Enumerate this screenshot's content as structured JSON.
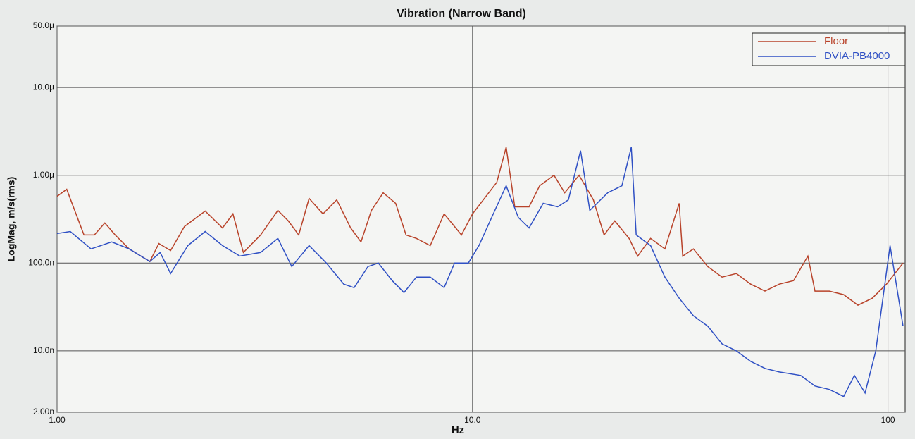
{
  "chart_data": {
    "type": "line",
    "title": "Vibration (Narrow Band)",
    "x_label": "Hz",
    "y_label": "LogMag, m/s(rms)",
    "x_log": true,
    "y_log": true,
    "grid": true,
    "legend": "upper right",
    "xlim": [
      1,
      110
    ],
    "xticks": [
      {
        "value": 1,
        "label": "1.00"
      },
      {
        "value": 10,
        "label": "10.0"
      },
      100
    ],
    "ylim": [
      2e-09,
      5e-05
    ],
    "yticks": [
      {
        "value": 5e-05,
        "label": "50.0µ"
      },
      {
        "value": 1e-05,
        "label": "10.0µ"
      },
      {
        "value": 1e-06,
        "label": "1.00µ"
      },
      {
        "value": 1e-07,
        "label": "100.0n"
      },
      {
        "value": 1e-08,
        "label": "10.0n"
      },
      {
        "value": 2e-09,
        "label": "2.00n"
      }
    ],
    "series": [
      {
        "name": "Floor",
        "color": "#b8432a",
        "x": [
          1.0,
          1.055,
          1.161,
          1.23,
          1.303,
          1.38,
          1.491,
          1.672,
          1.758,
          1.876,
          2.026,
          2.273,
          2.502,
          2.651,
          2.808,
          3.09,
          3.401,
          3.603,
          3.817,
          4.043,
          4.365,
          4.713,
          5.089,
          5.391,
          5.71,
          6.095,
          6.531,
          6.918,
          7.328,
          7.912,
          8.545,
          9.404,
          10.0,
          10.78,
          11.44,
          12.05,
          12.64,
          13.68,
          14.51,
          15.71,
          16.67,
          18.05,
          19.54,
          20.74,
          22.0,
          23.82,
          24.98,
          26.83,
          29.04,
          31.44,
          32.06,
          34.02,
          36.84,
          39.87,
          43.17,
          46.72,
          50.58,
          54.75,
          59.27,
          64.16,
          66.75,
          72.26,
          78.22,
          84.68,
          91.66,
          99.2,
          108.7
        ],
        "values": [
          5.75e-07,
          6.92e-07,
          2.09e-07,
          2.09e-07,
          2.86e-07,
          2.09e-07,
          1.45e-07,
          1.04e-07,
          1.67e-07,
          1.39e-07,
          2.61e-07,
          3.91e-07,
          2.51e-07,
          3.63e-07,
          1.32e-07,
          2.09e-07,
          3.98e-07,
          3.02e-07,
          2.09e-07,
          5.45e-07,
          3.63e-07,
          5.25e-07,
          2.51e-07,
          1.74e-07,
          3.98e-07,
          6.31e-07,
          4.79e-07,
          2.09e-07,
          1.91e-07,
          1.58e-07,
          3.63e-07,
          2.09e-07,
          3.63e-07,
          5.75e-07,
          8.32e-07,
          2.089e-06,
          4.37e-07,
          4.37e-07,
          7.59e-07,
          1e-06,
          6.31e-07,
          1e-06,
          5.25e-07,
          2.09e-07,
          3.02e-07,
          1.91e-07,
          1.2e-07,
          1.91e-07,
          1.45e-07,
          4.79e-07,
          1.2e-07,
          1.45e-07,
          9.12e-08,
          6.92e-08,
          7.59e-08,
          5.75e-08,
          4.79e-08,
          5.75e-08,
          6.31e-08,
          1.2e-07,
          4.79e-08,
          4.79e-08,
          4.37e-08,
          3.31e-08,
          3.98e-08,
          5.75e-08,
          1e-07
        ]
      },
      {
        "name": "DVIA-PB4000",
        "color": "#2f50c4",
        "x": [
          1.0,
          1.076,
          1.207,
          1.354,
          1.491,
          1.672,
          1.771,
          1.876,
          2.065,
          2.273,
          2.502,
          2.754,
          3.09,
          3.401,
          3.673,
          4.043,
          4.449,
          4.898,
          5.188,
          5.602,
          5.933,
          6.407,
          6.839,
          7.328,
          7.912,
          8.545,
          9.052,
          9.772,
          10.36,
          11.22,
          12.05,
          12.89,
          13.68,
          14.8,
          16.03,
          17.01,
          18.2,
          19.16,
          21.15,
          22.89,
          24.11,
          24.78,
          26.83,
          29.04,
          31.44,
          34.02,
          36.84,
          39.87,
          43.17,
          46.72,
          50.58,
          54.75,
          61.66,
          66.75,
          72.26,
          78.22,
          83.02,
          88.1,
          93.48,
          101.2,
          108.7
        ],
        "values": [
          2.17e-07,
          2.29e-07,
          1.45e-07,
          1.74e-07,
          1.45e-07,
          1.04e-07,
          1.32e-07,
          7.59e-08,
          1.58e-07,
          2.29e-07,
          1.58e-07,
          1.2e-07,
          1.32e-07,
          1.91e-07,
          9.12e-08,
          1.58e-07,
          1e-07,
          5.75e-08,
          5.25e-08,
          9.12e-08,
          1e-07,
          6.31e-08,
          4.61e-08,
          6.92e-08,
          6.92e-08,
          5.25e-08,
          1e-07,
          1e-07,
          1.58e-07,
          3.63e-07,
          7.59e-07,
          3.31e-07,
          2.51e-07,
          4.79e-07,
          4.37e-07,
          5.25e-07,
          1.905e-06,
          3.98e-07,
          6.31e-07,
          7.59e-07,
          2.089e-06,
          2.09e-07,
          1.58e-07,
          6.92e-08,
          3.98e-08,
          2.51e-08,
          1.91e-08,
          1.2e-08,
          1e-08,
          7.59e-09,
          6.31e-09,
          5.75e-09,
          5.25e-09,
          3.98e-09,
          3.63e-09,
          3.02e-09,
          5.25e-09,
          3.31e-09,
          1e-08,
          1.58e-07,
          1.91e-08
        ]
      }
    ]
  }
}
